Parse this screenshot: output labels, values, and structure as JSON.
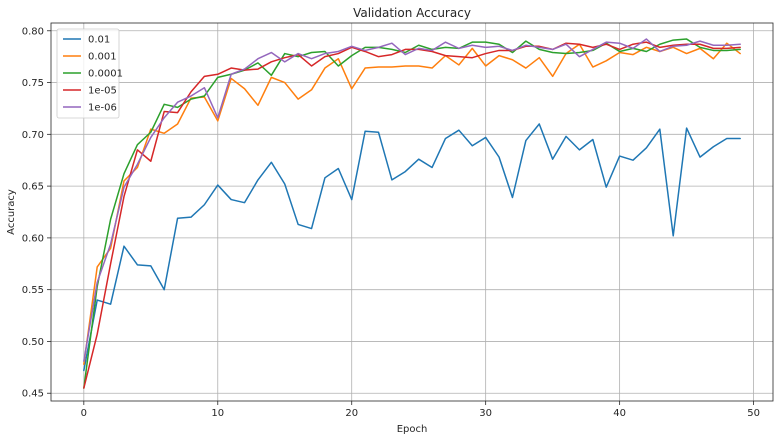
{
  "chart_data": {
    "type": "line",
    "title": "Validation Accuracy",
    "xlabel": "Epoch",
    "ylabel": "Accuracy",
    "xlim": [
      -2.45,
      51.45
    ],
    "ylim": [
      0.4425,
      0.8075
    ],
    "xticks": [
      0,
      10,
      20,
      30,
      40,
      50
    ],
    "yticks": [
      0.45,
      0.5,
      0.55,
      0.6,
      0.65,
      0.7,
      0.75,
      0.8
    ],
    "ytick_labels": [
      "0.45",
      "0.50",
      "0.55",
      "0.60",
      "0.65",
      "0.70",
      "0.75",
      "0.80"
    ],
    "grid": true,
    "legend_position": "top-left",
    "x": [
      0,
      1,
      2,
      3,
      4,
      5,
      6,
      7,
      8,
      9,
      10,
      11,
      12,
      13,
      14,
      15,
      16,
      17,
      18,
      19,
      20,
      21,
      22,
      23,
      24,
      25,
      26,
      27,
      28,
      29,
      30,
      31,
      32,
      33,
      34,
      35,
      36,
      37,
      38,
      39,
      40,
      41,
      42,
      43,
      44,
      45,
      46,
      47,
      48,
      49
    ],
    "series": [
      {
        "name": "0.01",
        "color": "#1f77b4",
        "values": [
          0.472,
          0.54,
          0.536,
          0.592,
          0.574,
          0.573,
          0.55,
          0.619,
          0.62,
          0.632,
          0.651,
          0.637,
          0.634,
          0.656,
          0.673,
          0.652,
          0.613,
          0.609,
          0.658,
          0.667,
          0.637,
          0.703,
          0.702,
          0.656,
          0.664,
          0.676,
          0.668,
          0.696,
          0.704,
          0.689,
          0.697,
          0.678,
          0.639,
          0.694,
          0.71,
          0.676,
          0.698,
          0.685,
          0.695,
          0.649,
          0.679,
          0.675,
          0.687,
          0.705,
          0.602,
          0.706,
          0.678,
          0.688,
          0.696,
          0.696
        ]
      },
      {
        "name": "0.001",
        "color": "#ff7f0e",
        "values": [
          0.478,
          0.572,
          0.59,
          0.655,
          0.668,
          0.705,
          0.701,
          0.71,
          0.735,
          0.736,
          0.713,
          0.754,
          0.744,
          0.728,
          0.755,
          0.75,
          0.734,
          0.743,
          0.764,
          0.773,
          0.744,
          0.764,
          0.765,
          0.765,
          0.766,
          0.766,
          0.764,
          0.776,
          0.767,
          0.783,
          0.766,
          0.776,
          0.772,
          0.764,
          0.774,
          0.756,
          0.778,
          0.787,
          0.765,
          0.771,
          0.779,
          0.777,
          0.784,
          0.78,
          0.784,
          0.778,
          0.783,
          0.773,
          0.788,
          0.778
        ]
      },
      {
        "name": "0.0001",
        "color": "#2ca02c",
        "values": [
          0.455,
          0.553,
          0.618,
          0.662,
          0.69,
          0.702,
          0.729,
          0.726,
          0.734,
          0.737,
          0.755,
          0.758,
          0.762,
          0.769,
          0.757,
          0.778,
          0.775,
          0.779,
          0.78,
          0.766,
          0.776,
          0.784,
          0.784,
          0.782,
          0.779,
          0.786,
          0.782,
          0.784,
          0.783,
          0.789,
          0.789,
          0.787,
          0.779,
          0.79,
          0.782,
          0.779,
          0.778,
          0.779,
          0.781,
          0.788,
          0.78,
          0.783,
          0.78,
          0.787,
          0.791,
          0.792,
          0.784,
          0.781,
          0.781,
          0.782
        ]
      },
      {
        "name": "1e-05",
        "color": "#d62728",
        "values": [
          0.455,
          0.507,
          0.575,
          0.64,
          0.685,
          0.674,
          0.722,
          0.721,
          0.741,
          0.756,
          0.758,
          0.764,
          0.762,
          0.763,
          0.77,
          0.774,
          0.777,
          0.766,
          0.775,
          0.778,
          0.784,
          0.78,
          0.775,
          0.777,
          0.782,
          0.782,
          0.78,
          0.776,
          0.775,
          0.774,
          0.778,
          0.781,
          0.781,
          0.785,
          0.785,
          0.782,
          0.788,
          0.787,
          0.784,
          0.787,
          0.782,
          0.787,
          0.789,
          0.784,
          0.786,
          0.787,
          0.787,
          0.783,
          0.783,
          0.784
        ]
      },
      {
        "name": "1e-06",
        "color": "#9467bd",
        "values": [
          0.481,
          0.557,
          0.594,
          0.649,
          0.671,
          0.697,
          0.716,
          0.731,
          0.737,
          0.745,
          0.716,
          0.758,
          0.763,
          0.773,
          0.779,
          0.77,
          0.778,
          0.773,
          0.778,
          0.78,
          0.785,
          0.781,
          0.784,
          0.788,
          0.777,
          0.783,
          0.781,
          0.789,
          0.783,
          0.786,
          0.784,
          0.785,
          0.781,
          0.786,
          0.784,
          0.782,
          0.787,
          0.775,
          0.782,
          0.789,
          0.788,
          0.783,
          0.792,
          0.78,
          0.785,
          0.786,
          0.79,
          0.786,
          0.786,
          0.787
        ]
      }
    ]
  }
}
